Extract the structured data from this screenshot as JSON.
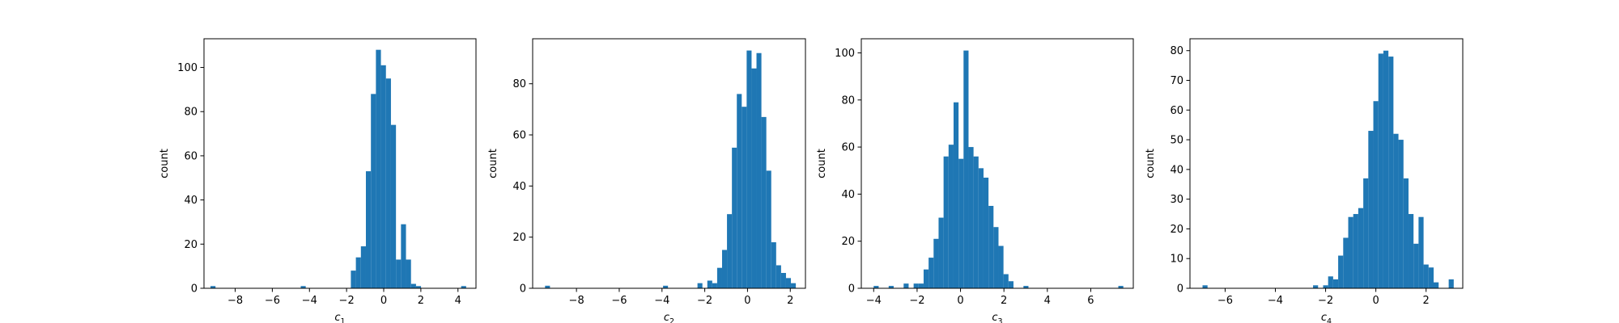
{
  "figure": {
    "background": "#ffffff",
    "bar_color": "#1f77b4"
  },
  "chart_data": [
    {
      "type": "bar",
      "title": "",
      "xlabel_base": "c",
      "xlabel_sub": "1",
      "ylabel": "count",
      "xlim": [
        -9.68,
        4.97
      ],
      "ylim": [
        0,
        113
      ],
      "xticks": [
        -8,
        -6,
        -4,
        -2,
        0,
        2,
        4
      ],
      "yticks": [
        0,
        20,
        40,
        60,
        80,
        100
      ],
      "bin_edges": [
        -9.33,
        -9.06,
        -8.79,
        -8.52,
        -8.25,
        -7.98,
        -7.71,
        -7.44,
        -7.17,
        -6.9,
        -6.63,
        -6.36,
        -6.09,
        -5.82,
        -5.55,
        -5.28,
        -5.01,
        -4.74,
        -4.47,
        -4.2,
        -3.93,
        -3.66,
        -3.39,
        -3.12,
        -2.85,
        -2.58,
        -2.31,
        -2.04,
        -1.77,
        -1.5,
        -1.23,
        -0.96,
        -0.69,
        -0.42,
        -0.15,
        0.12,
        0.39,
        0.66,
        0.93,
        1.2,
        1.47,
        1.74,
        2.01,
        2.28,
        2.55,
        2.82,
        3.09,
        3.36,
        3.63,
        3.9,
        4.17,
        4.44
      ],
      "counts": [
        1,
        0,
        0,
        0,
        0,
        0,
        0,
        0,
        0,
        0,
        0,
        0,
        0,
        0,
        0,
        0,
        0,
        0,
        1,
        0,
        0,
        0,
        0,
        0,
        0,
        0,
        0,
        0,
        8,
        14,
        19,
        53,
        88,
        108,
        101,
        95,
        74,
        13,
        29,
        13,
        2,
        1,
        0,
        0,
        0,
        0,
        0,
        0,
        0,
        0,
        1
      ]
    },
    {
      "type": "bar",
      "title": "",
      "xlabel_base": "c",
      "xlabel_sub": "2",
      "ylabel": "count",
      "xlim": [
        -10.05,
        2.71
      ],
      "ylim": [
        0,
        97.6
      ],
      "xticks": [
        -8,
        -6,
        -4,
        -2,
        0,
        2
      ],
      "yticks": [
        0,
        20,
        40,
        60,
        80
      ],
      "bin_edges": [
        -9.47,
        -9.24,
        -9.01,
        -8.78,
        -8.55,
        -8.32,
        -8.09,
        -7.86,
        -7.63,
        -7.4,
        -7.17,
        -6.94,
        -6.71,
        -6.48,
        -6.25,
        -6.02,
        -5.79,
        -5.56,
        -5.33,
        -5.1,
        -4.87,
        -4.64,
        -4.41,
        -4.18,
        -3.95,
        -3.72,
        -3.49,
        -3.26,
        -3.03,
        -2.8,
        -2.57,
        -2.34,
        -2.11,
        -1.88,
        -1.65,
        -1.42,
        -1.19,
        -0.96,
        -0.73,
        -0.5,
        -0.27,
        -0.04,
        0.19,
        0.42,
        0.65,
        0.88,
        1.11,
        1.34,
        1.57,
        1.8,
        2.03,
        2.26
      ],
      "counts": [
        1,
        0,
        0,
        0,
        0,
        0,
        0,
        0,
        0,
        0,
        0,
        0,
        0,
        0,
        0,
        0,
        0,
        0,
        0,
        0,
        0,
        0,
        0,
        0,
        1,
        0,
        0,
        0,
        0,
        0,
        0,
        2,
        0,
        3,
        2,
        8,
        15,
        29,
        55,
        76,
        71,
        93,
        86,
        92,
        67,
        46,
        18,
        9,
        6,
        4,
        2
      ]
    },
    {
      "type": "bar",
      "title": "",
      "xlabel_base": "c",
      "xlabel_sub": "3",
      "ylabel": "count",
      "xlim": [
        -4.57,
        7.96
      ],
      "ylim": [
        0,
        106
      ],
      "xticks": [
        -4,
        -2,
        0,
        2,
        4,
        6
      ],
      "yticks": [
        0,
        20,
        40,
        60,
        80,
        100
      ],
      "bin_edges": [
        -4.0,
        -3.77,
        -3.54,
        -3.31,
        -3.08,
        -2.85,
        -2.62,
        -2.39,
        -2.16,
        -1.93,
        -1.7,
        -1.47,
        -1.24,
        -1.01,
        -0.78,
        -0.55,
        -0.32,
        -0.09,
        0.14,
        0.37,
        0.6,
        0.83,
        1.06,
        1.29,
        1.52,
        1.75,
        1.98,
        2.21,
        2.44,
        2.67,
        2.9,
        3.13,
        3.36,
        3.59,
        3.82,
        4.05,
        4.28,
        4.51,
        4.74,
        4.97,
        5.2,
        5.43,
        5.66,
        5.89,
        6.12,
        6.35,
        6.58,
        6.81,
        7.04,
        7.27,
        7.5
      ],
      "counts": [
        1,
        0,
        0,
        1,
        0,
        0,
        2,
        0,
        2,
        2,
        8,
        13,
        21,
        30,
        56,
        61,
        79,
        55,
        101,
        60,
        56,
        51,
        47,
        35,
        26,
        18,
        6,
        3,
        0,
        0,
        1,
        0,
        0,
        0,
        0,
        0,
        0,
        0,
        0,
        0,
        0,
        0,
        0,
        0,
        0,
        0,
        0,
        0,
        0,
        1
      ]
    },
    {
      "type": "bar",
      "title": "",
      "xlabel_base": "c",
      "xlabel_sub": "4",
      "ylabel": "count",
      "xlim": [
        -7.4,
        3.46
      ],
      "ylim": [
        0,
        84
      ],
      "xticks": [
        -6,
        -4,
        -2,
        0,
        2
      ],
      "yticks": [
        0,
        10,
        20,
        30,
        40,
        50,
        60,
        70,
        80
      ],
      "bin_edges": [
        -6.9,
        -6.7,
        -6.5,
        -6.3,
        -6.1,
        -5.9,
        -5.7,
        -5.5,
        -5.3,
        -5.1,
        -4.9,
        -4.7,
        -4.5,
        -4.3,
        -4.1,
        -3.9,
        -3.7,
        -3.5,
        -3.3,
        -3.1,
        -2.9,
        -2.7,
        -2.5,
        -2.3,
        -2.1,
        -1.9,
        -1.7,
        -1.5,
        -1.3,
        -1.1,
        -0.9,
        -0.7,
        -0.5,
        -0.3,
        -0.1,
        0.1,
        0.3,
        0.5,
        0.7,
        0.9,
        1.1,
        1.3,
        1.5,
        1.7,
        1.9,
        2.1,
        2.3,
        2.5,
        2.7,
        2.9,
        3.1
      ],
      "counts": [
        1,
        0,
        0,
        0,
        0,
        0,
        0,
        0,
        0,
        0,
        0,
        0,
        0,
        0,
        0,
        0,
        0,
        0,
        0,
        0,
        0,
        0,
        1,
        0,
        1,
        4,
        3,
        11,
        17,
        24,
        25,
        27,
        37,
        53,
        63,
        79,
        80,
        78,
        52,
        50,
        37,
        25,
        15,
        24,
        8,
        7,
        2,
        0,
        0,
        3
      ]
    }
  ]
}
